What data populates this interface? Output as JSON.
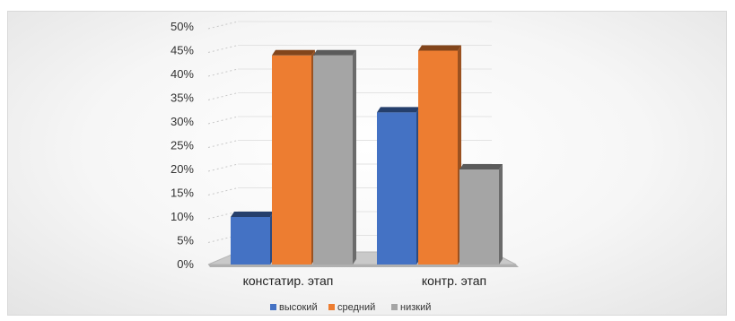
{
  "chart_data": {
    "type": "bar",
    "categories": [
      "констатир. этап",
      "контр. этап"
    ],
    "series": [
      {
        "name": "высокий",
        "color": "#4472c4",
        "values": [
          10,
          32
        ]
      },
      {
        "name": "средний",
        "color": "#ed7d31",
        "values": [
          44,
          45
        ]
      },
      {
        "name": "низкий",
        "color": "#a5a5a5",
        "values": [
          44,
          20
        ]
      }
    ],
    "yticks": [
      "0%",
      "5%",
      "10%",
      "15%",
      "20%",
      "25%",
      "30%",
      "35%",
      "40%",
      "45%",
      "50%"
    ],
    "ylim": [
      0,
      50
    ],
    "unit": "%",
    "grid": true,
    "legend": "bottom",
    "style": "3d-clustered-column"
  }
}
